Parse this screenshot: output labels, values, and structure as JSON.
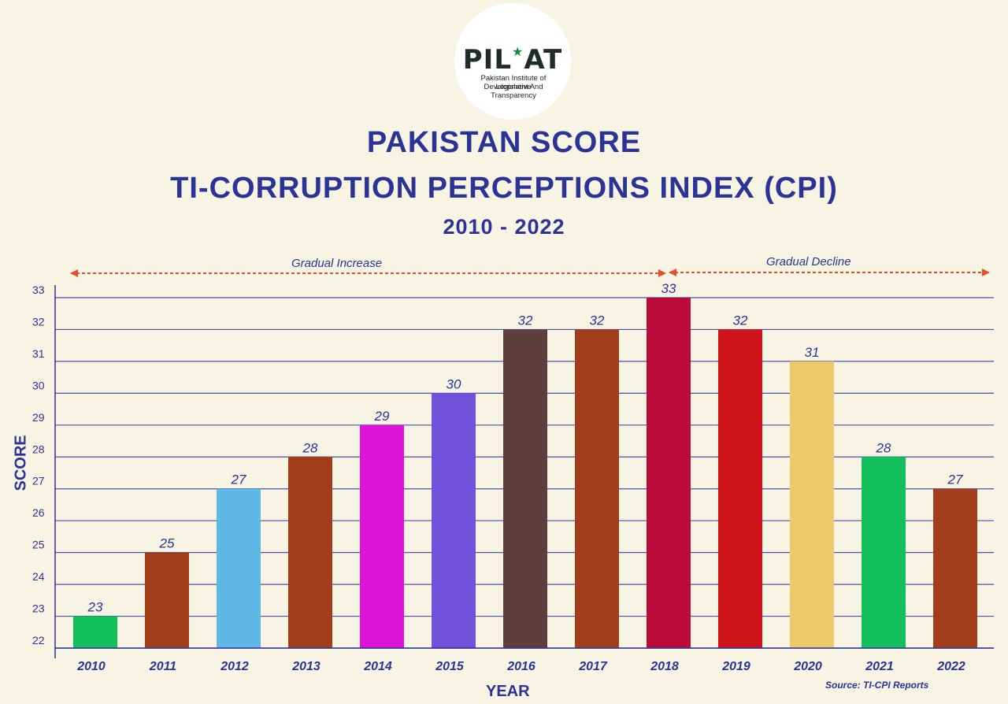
{
  "logo": {
    "word": "PIL",
    "word2": "AT",
    "line1": "Pakistan Institute of Legislative",
    "line2": "Development And Transparency"
  },
  "header": {
    "title1": "PAKISTAN SCORE",
    "title2": "TI-CORRUPTION PERCEPTIONS INDEX (CPI)",
    "title3": "2010 - 2022"
  },
  "annotations": {
    "increase": "Gradual Increase",
    "decline": "Gradual Decline"
  },
  "source": "Source: TI-CPI Reports",
  "colors": {
    "axis": "#2b3396",
    "grid": "#4a52a8",
    "arrow": "#e0502a"
  },
  "chart_data": {
    "type": "bar",
    "xlabel": "YEAR",
    "ylabel": "SCORE",
    "ylim": [
      22,
      33
    ],
    "yticks": [
      22,
      23,
      24,
      25,
      26,
      27,
      28,
      29,
      30,
      31,
      32,
      33
    ],
    "grid": true,
    "categories": [
      "2010",
      "2011",
      "2012",
      "2013",
      "2014",
      "2015",
      "2016",
      "2017",
      "2018",
      "2019",
      "2020",
      "2021",
      "2022"
    ],
    "values": [
      23,
      25,
      27,
      28,
      29,
      30,
      32,
      32,
      33,
      32,
      31,
      28,
      27
    ],
    "bar_colors": [
      "#13bf5a",
      "#a23d1a",
      "#5fb7e6",
      "#a23d1a",
      "#dc14d6",
      "#6f52d9",
      "#5e3d3d",
      "#a23d1a",
      "#bc0a3b",
      "#d0141b",
      "#edc96a",
      "#13bf5a",
      "#a23d1a"
    ]
  }
}
